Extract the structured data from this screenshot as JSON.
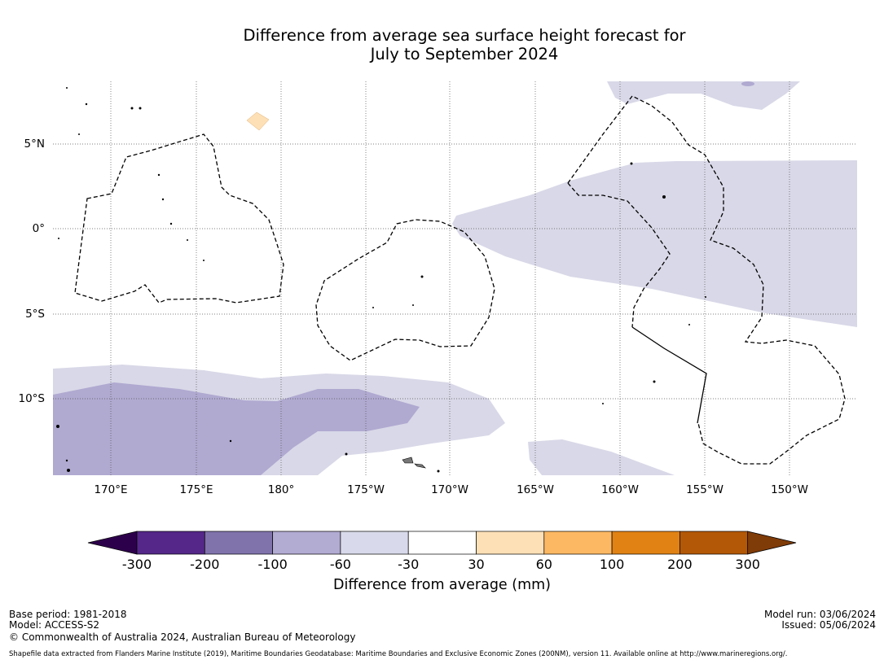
{
  "title": {
    "line1": "Difference from average sea surface height forecast for",
    "line2": "July to September 2024"
  },
  "map": {
    "lon_labels": [
      "170°E",
      "175°E",
      "180°",
      "175°W",
      "170°W",
      "165°W",
      "160°W",
      "155°W",
      "150°W"
    ],
    "lat_labels": [
      "5°N",
      "0°",
      "5°S",
      "10°S"
    ]
  },
  "colorbar": {
    "title": "Difference from average (mm)",
    "ticks": [
      "-300",
      "-200",
      "-100",
      "-60",
      "-30",
      "30",
      "60",
      "100",
      "200",
      "300"
    ],
    "colors": [
      "#2d004b",
      "#542788",
      "#8073ac",
      "#b2abd2",
      "#d8daeb",
      "#ffffff",
      "#fee0b6",
      "#fdb863",
      "#e08214",
      "#b35806",
      "#7f3b08"
    ]
  },
  "footer": {
    "base_period": "Base period: 1981-2018",
    "model": "Model: ACCESS-S2",
    "copyright": "© Commonwealth of Australia 2024, Australian Bureau of Meteorology",
    "model_run": "Model run: 03/06/2024",
    "issued": "Issued: 05/06/2024",
    "shapefile_note": "Shapefile data extracted from Flanders Marine Institute (2019), Maritime Boundaries Geodatabase: Maritime Boundaries and Exclusive Economic Zones (200NM), version 11. Available online at http://www.marineregions.org/."
  }
}
